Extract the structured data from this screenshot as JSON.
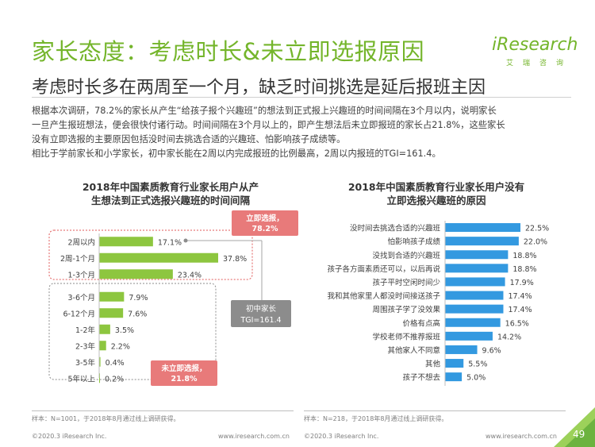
{
  "header": {
    "title": "家长态度：考虑时长&未立即选报原因",
    "subtitle": "考虑时长多在两周至一个月，缺乏时间挑选是延后报班主因",
    "logo_text": "iResearch",
    "logo_cn": "艾瑞咨询"
  },
  "body": {
    "para1_line1": "根据本次调研，78.2%的家长从产生“给孩子报个兴趣班”的想法到正式报上兴趣班的时间间隔在3个月以内，说明家长",
    "para1_line2": "一旦产生报班想法，便会很快付诸行动。时间间隔在3个月以上的，即产生想法后未立即报班的家长占21.8%，这些家长",
    "para1_line3": "没有立即选报的主要原因包括没时间去挑选合适的兴趣班、怕影响孩子成绩等。",
    "para2": "相比于学前家长和小学家长，初中家长能在2周以内完成报班的比例最高，2周以内报班的TGI=161.4。"
  },
  "chart_data": [
    {
      "type": "bar",
      "orientation": "horizontal",
      "title": "2018年中国素质教育行业家长用户从产生想法到正式选报兴趣班的时间间隔",
      "title_line1": "2018年中国素质教育行业家长用户从产",
      "title_line2": "生想法到正式选报兴趣班的时间间隔",
      "categories": [
        "2周以内",
        "2周-1个月",
        "1-3个月",
        "3-6个月",
        "6-12个月",
        "1-2年",
        "2-3年",
        "3-5年",
        "5年以上"
      ],
      "values": [
        17.1,
        37.8,
        23.4,
        7.9,
        7.6,
        3.5,
        2.2,
        0.4,
        0.2
      ],
      "value_labels": [
        "17.1%",
        "37.8%",
        "23.4%",
        "7.9%",
        "7.6%",
        "3.5%",
        "2.2%",
        "0.4%",
        "0.2%"
      ],
      "color": "#8dc63f",
      "annotations": {
        "immediate_label": "立即选报，",
        "immediate_value": "78.2%",
        "not_immediate_label": "未立即选报，",
        "not_immediate_value": "21.8%",
        "tgi_line1": "初中家长",
        "tgi_line2": "TGI=161.4"
      },
      "note": "样本：N=1001，于2018年8月通过线上调研获得。"
    },
    {
      "type": "bar",
      "orientation": "horizontal",
      "title": "2018年中国素质教育行业家长用户没有立即选报兴趣班的原因",
      "title_line1": "2018年中国素质教育行业家长用户没有",
      "title_line2": "立即选报兴趣班的原因",
      "categories": [
        "没时间去挑选合适的兴趣班",
        "怕影响孩子成绩",
        "没找到合适的兴趣班",
        "孩子各方面素质还可以，以后再说",
        "孩子平时空闲时间少",
        "我和其他家里人都没时间接送孩子",
        "周围孩子学了没效果",
        "价格有点高",
        "学校老师不推荐报班",
        "其他家人不同意",
        "其他",
        "孩子不想去"
      ],
      "values": [
        22.5,
        22.0,
        18.8,
        18.8,
        17.9,
        17.4,
        17.4,
        16.5,
        14.2,
        9.6,
        5.5,
        5.0
      ],
      "value_labels": [
        "22.5%",
        "22.0%",
        "18.8%",
        "18.8%",
        "17.9%",
        "17.4%",
        "17.4%",
        "16.5%",
        "14.2%",
        "9.6%",
        "5.5%",
        "5.0%"
      ],
      "color": "#3399e0",
      "note": "样本：N=218，于2018年8月通过线上调研获得。"
    }
  ],
  "footer": {
    "copyright_left": "©2020.3 iResearch Inc.",
    "url_left": "www.iresearch.com.cn",
    "copyright_right": "©2020.3 iResearch Inc.",
    "url_right": "www.iresearch.com.cn",
    "page_number": "49"
  },
  "colors": {
    "brand_green": "#74b52b",
    "accent_red": "#e05a5a",
    "tgi_gray": "#8c8c8c"
  }
}
